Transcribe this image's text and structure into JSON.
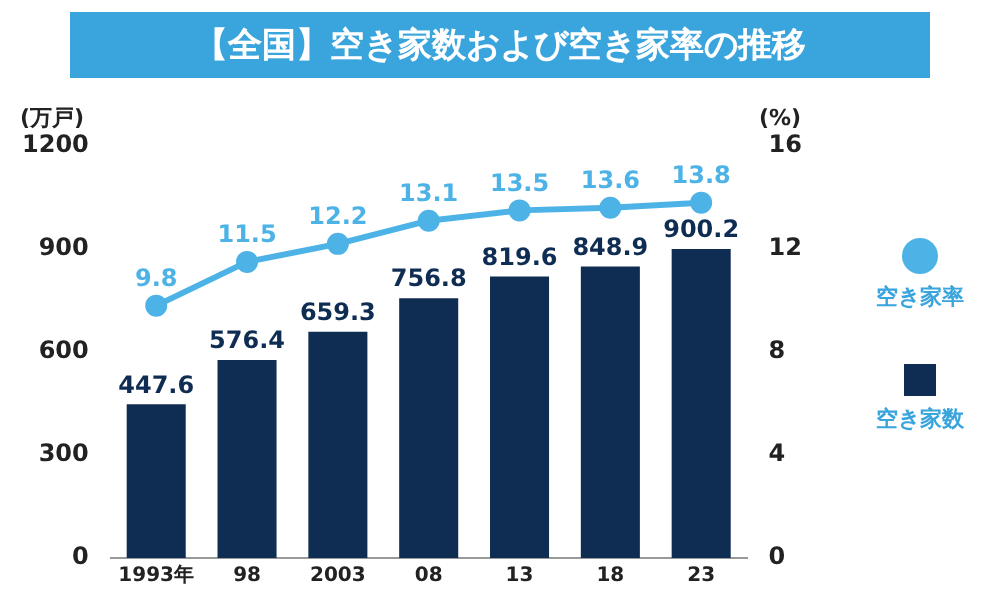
{
  "chart_data": {
    "type": "bar",
    "title": "【全国】空き家数および空き家率の推移",
    "categories": [
      "1993年",
      "98",
      "2003",
      "08",
      "13",
      "18",
      "23"
    ],
    "ylabel": "(万戸)",
    "y2label": "(%)",
    "series": [
      {
        "name": "空き家率",
        "type": "line",
        "axis": "y2",
        "color": "#4db3e6",
        "values": [
          9.8,
          11.5,
          12.2,
          13.1,
          13.5,
          13.6,
          13.8
        ]
      },
      {
        "name": "空き家数",
        "type": "bar",
        "color": "#0f2d52",
        "values": [
          447.6,
          576.4,
          659.3,
          756.8,
          819.6,
          848.9,
          900.2
        ]
      }
    ],
    "ylim": [
      0,
      1200
    ],
    "yticks": [
      0,
      300,
      600,
      900,
      1200
    ],
    "y2lim": [
      0,
      16
    ],
    "y2ticks": [
      0,
      4,
      8,
      12,
      16
    ],
    "marker": "circle",
    "legend": "right",
    "data_labels": true
  }
}
